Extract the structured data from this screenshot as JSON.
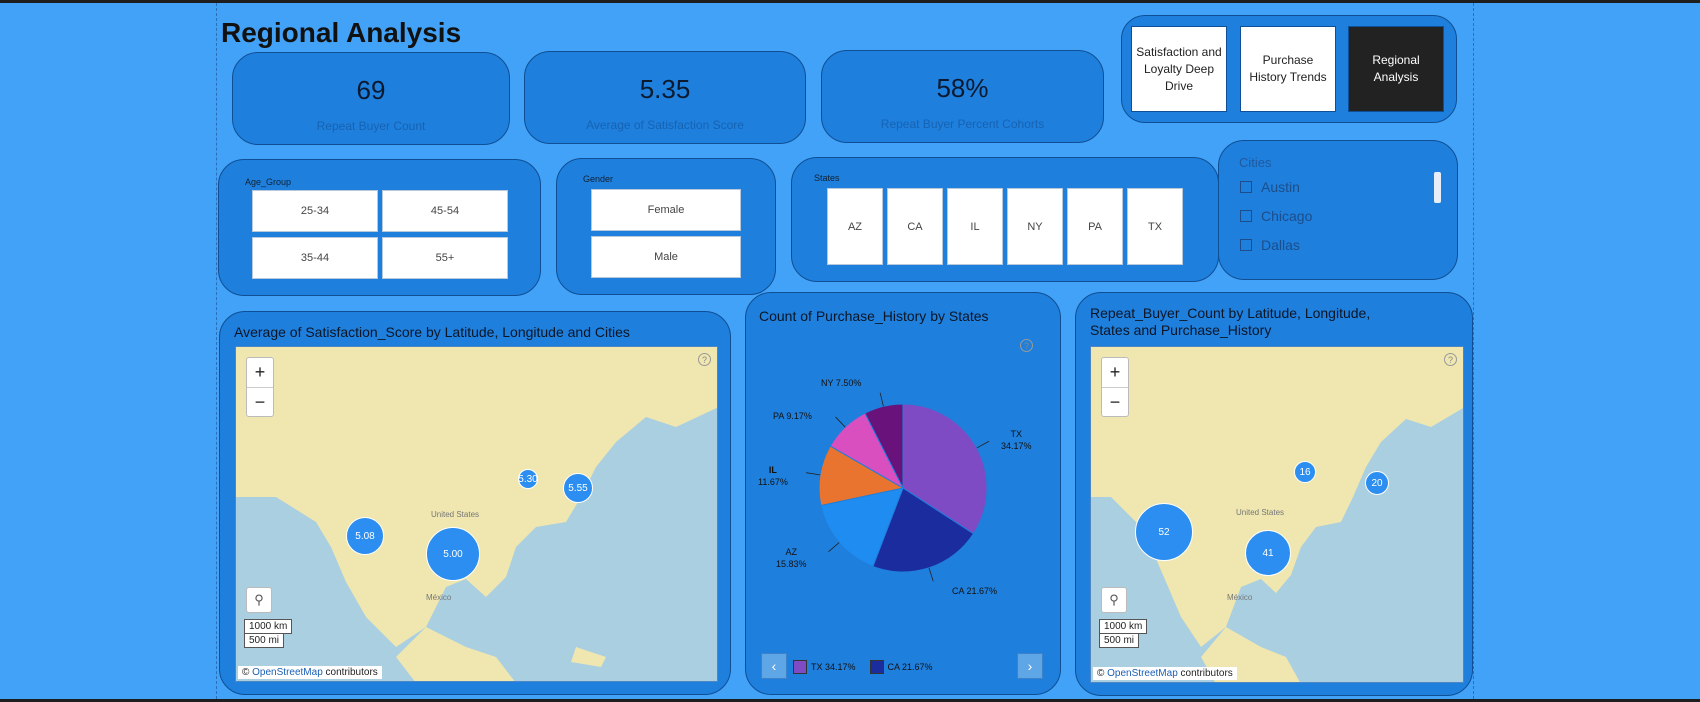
{
  "page_title": "Regional Analysis",
  "kpis": [
    {
      "value": "69",
      "label": "Repeat Buyer Count"
    },
    {
      "value": "5.35",
      "label": "Average of Satisfaction Score"
    },
    {
      "value": "58%",
      "label": "Repeat Buyer Percent Cohorts"
    }
  ],
  "nav_buttons": [
    {
      "label": "Satisfaction and Loyalty Deep Drive"
    },
    {
      "label": "Purchase History Trends"
    },
    {
      "label": "Regional Analysis"
    }
  ],
  "slicers": {
    "age": {
      "title": "Age_Group",
      "options": [
        "25-34",
        "45-54",
        "35-44",
        "55+"
      ]
    },
    "gender": {
      "title": "Gender",
      "options": [
        "Female",
        "Male"
      ]
    },
    "states": {
      "title": "States",
      "options": [
        "AZ",
        "CA",
        "IL",
        "NY",
        "PA",
        "TX"
      ]
    },
    "cities": {
      "title": "Cities",
      "options": [
        "Austin",
        "Chicago",
        "Dallas"
      ]
    }
  },
  "map1": {
    "title": "Average of Satisfaction_Score by Latitude, Longitude and Cities",
    "zoom_in": "+",
    "zoom_out": "−",
    "country_label": "United States",
    "mexico_label": "México",
    "scale_km": "1000 km",
    "scale_mi": "500 mi",
    "attrib_prefix": "©",
    "attrib_link": "OpenStreetMap",
    "attrib_suffix": "contributors",
    "bubbles": [
      "5.08",
      "5.00",
      "5.30",
      "5.55"
    ]
  },
  "pie": {
    "title": "Count of Purchase_History by States",
    "legend": [
      {
        "label": "TX 34.17%",
        "color": "#7e4bc4"
      },
      {
        "label": "CA 21.67%",
        "color": "#1a2c9e"
      }
    ],
    "labels": {
      "TX": [
        "TX",
        "34.17%"
      ],
      "CA": [
        "CA 21.67%"
      ],
      "AZ": [
        "AZ",
        "15.83%"
      ],
      "IL": [
        "IL",
        "11.67%"
      ],
      "PA": [
        "PA 9.17%"
      ],
      "NY": [
        "NY 7.50%"
      ]
    }
  },
  "map2": {
    "title_line1": "Repeat_Buyer_Count by Latitude, Longitude,",
    "title_line2": "States and Purchase_History",
    "zoom_in": "+",
    "zoom_out": "−",
    "country_label": "United States",
    "mexico_label": "México",
    "scale_km": "1000 km",
    "scale_mi": "500 mi",
    "attrib_prefix": "©",
    "attrib_link": "OpenStreetMap",
    "attrib_suffix": "contributors",
    "bubbles": [
      "52",
      "41",
      "16",
      "20"
    ]
  },
  "chart_data": {
    "type": "pie",
    "title": "Count of Purchase_History by States",
    "categories": [
      "TX",
      "CA",
      "AZ",
      "IL",
      "PA",
      "NY"
    ],
    "values": [
      34.17,
      21.67,
      15.83,
      11.67,
      9.17,
      7.5
    ],
    "colors": [
      "#7e4bc4",
      "#1a2c9e",
      "#1e8cf0",
      "#e87430",
      "#d94fc0",
      "#6a127c"
    ]
  },
  "colors": {
    "background": "#42a2f7",
    "card": "#1f7fdc",
    "active_nav": "#222222",
    "bubble": "#2b8ef0"
  }
}
